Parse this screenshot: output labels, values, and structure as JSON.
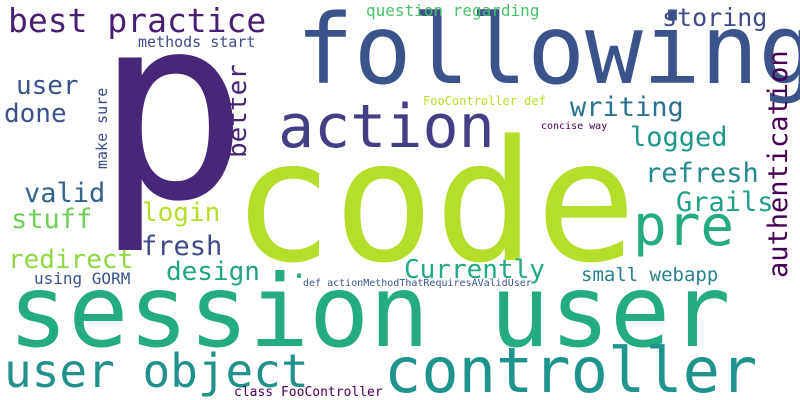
{
  "word_cloud": {
    "words": [
      {
        "id": "p",
        "text": "p",
        "color": "#46277a"
      },
      {
        "id": "code",
        "text": "code",
        "color": "#b5de2b"
      },
      {
        "id": "session_user",
        "text": "session user",
        "color": "#25ab82"
      },
      {
        "id": "following",
        "text": "following",
        "color": "#3b528b"
      },
      {
        "id": "action",
        "text": "action",
        "color": "#433e85"
      },
      {
        "id": "controller",
        "text": "controller",
        "color": "#1f948c"
      },
      {
        "id": "user_object",
        "text": "user object",
        "color": "#21918c"
      },
      {
        "id": "pre",
        "text": "pre",
        "color": "#25ab82"
      },
      {
        "id": "best_practice",
        "text": "best practice",
        "color": "#481f70"
      },
      {
        "id": "storing",
        "text": "storing",
        "color": "#3e4a89"
      },
      {
        "id": "writing",
        "text": "writing",
        "color": "#2c728e"
      },
      {
        "id": "logged",
        "text": "logged",
        "color": "#1f968b"
      },
      {
        "id": "user",
        "text": "user",
        "color": "#3b528b"
      },
      {
        "id": "done",
        "text": "done",
        "color": "#3b528b"
      },
      {
        "id": "refresh",
        "text": "refresh",
        "color": "#23898e"
      },
      {
        "id": "better",
        "text": "better",
        "color": "#482475"
      },
      {
        "id": "valid",
        "text": "valid",
        "color": "#33638d"
      },
      {
        "id": "grails",
        "text": "Grails",
        "color": "#1f9e89"
      },
      {
        "id": "stuff",
        "text": "stuff",
        "color": "#6ece58"
      },
      {
        "id": "login",
        "text": "login",
        "color": "#b5de2b"
      },
      {
        "id": "fresh",
        "text": "fresh",
        "color": "#3e4989"
      },
      {
        "id": "redirect",
        "text": "redirect",
        "color": "#90d743"
      },
      {
        "id": "design",
        "text": "design",
        "color": "#20a486"
      },
      {
        "id": "currently",
        "text": "Currently",
        "color": "#22a884"
      },
      {
        "id": "authentication",
        "text": "authentication",
        "color": "#440154"
      },
      {
        "id": "small_webapp",
        "text": "small webapp",
        "color": "#26828e"
      },
      {
        "id": "using_gorm",
        "text": "using GORM",
        "color": "#3b528b"
      },
      {
        "id": "make_sure",
        "text": "make sure",
        "color": "#3e4a89"
      },
      {
        "id": "question_regarding",
        "text": "question regarding",
        "color": "#4ac16d"
      },
      {
        "id": "methods_start",
        "text": "methods start",
        "color": "#3e4a89"
      },
      {
        "id": "foocontroller_def",
        "text": "FooController def",
        "color": "#b5de2b"
      },
      {
        "id": "concise_way",
        "text": "concise way",
        "color": "#440154"
      },
      {
        "id": "def_action",
        "text": "def actionMethodThatRequiresAValidUser",
        "color": "#3b528b"
      },
      {
        "id": "class_foocontroller",
        "text": "class FooController",
        "color": "#440154"
      },
      {
        "id": "dot",
        "text": ".",
        "color": "#25ab82"
      }
    ]
  }
}
